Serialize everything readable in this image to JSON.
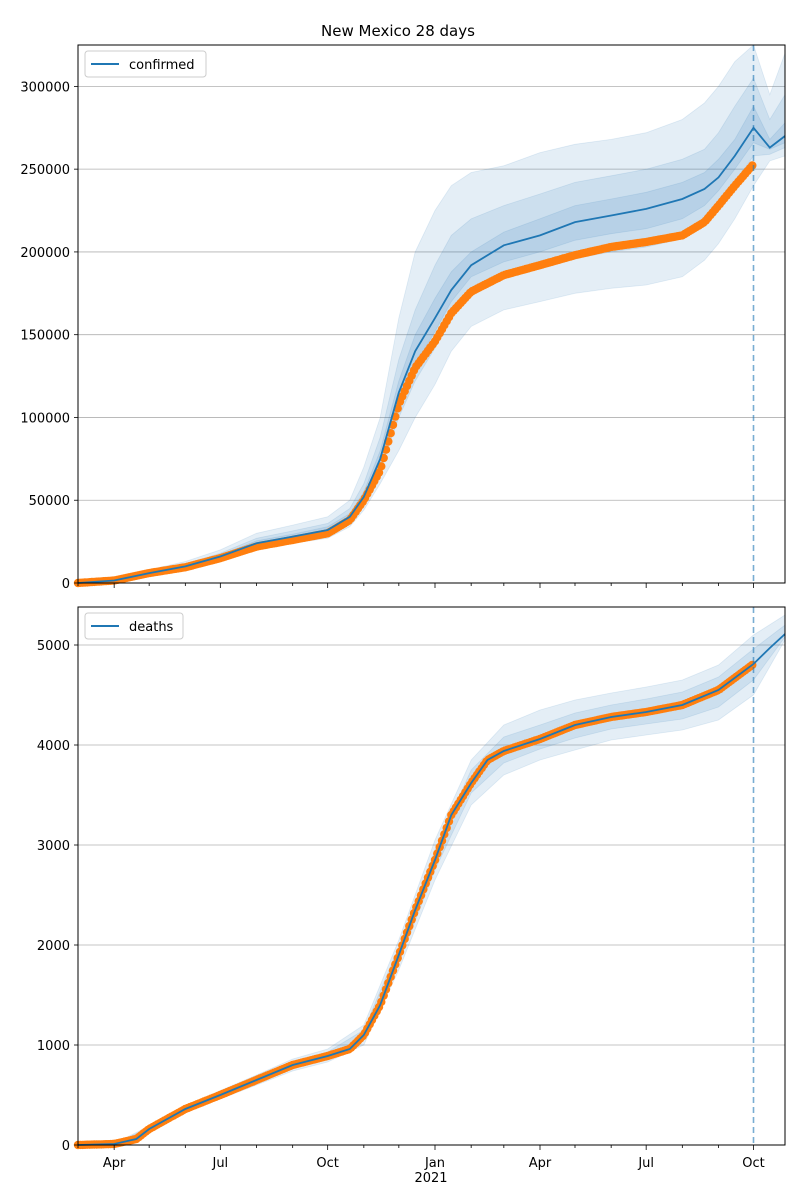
{
  "title": "New Mexico 28 days",
  "colors": {
    "model": "#1f77b4",
    "observed": "#ff7f0e",
    "band": "#1f77b4",
    "grid": "#b0b0b0",
    "vline": "#1f77b4"
  },
  "x_axis": {
    "ticks": [
      {
        "label": "Apr",
        "date": "2020-04-01"
      },
      {
        "label": "Jul",
        "date": "2020-07-01"
      },
      {
        "label": "Oct",
        "date": "2020-10-01"
      },
      {
        "label": "Jan",
        "date": "2021-01-01"
      },
      {
        "label": "Apr",
        "date": "2021-04-01"
      },
      {
        "label": "Jul",
        "date": "2021-07-01"
      },
      {
        "label": "Oct",
        "date": "2021-10-01"
      }
    ],
    "year_label": "2021",
    "range": [
      "2020-03-01",
      "2021-10-28"
    ],
    "forecast_start": "2021-10-01"
  },
  "chart_data": [
    {
      "type": "line",
      "panel": "top",
      "title": "New Mexico 28 days",
      "ylim": [
        0,
        325000
      ],
      "yticks": [
        "0",
        "50000",
        "100000",
        "150000",
        "200000",
        "250000",
        "300000"
      ],
      "grid": "horizontal",
      "legend": {
        "position": "top-left",
        "label": "confirmed"
      },
      "series": [
        {
          "name": "confirmed",
          "kind": "model",
          "x": [
            "2020-03-01",
            "2020-04-01",
            "2020-05-01",
            "2020-06-01",
            "2020-07-01",
            "2020-08-01",
            "2020-09-01",
            "2020-10-01",
            "2020-10-20",
            "2020-11-01",
            "2020-11-15",
            "2020-12-01",
            "2020-12-15",
            "2021-01-01",
            "2021-01-15",
            "2021-02-01",
            "2021-03-01",
            "2021-04-01",
            "2021-05-01",
            "2021-06-01",
            "2021-07-01",
            "2021-08-01",
            "2021-08-20",
            "2021-09-01",
            "2021-09-15",
            "2021-10-01",
            "2021-10-15",
            "2021-10-28"
          ],
          "y": [
            0,
            1500,
            6000,
            10000,
            16000,
            24000,
            28000,
            32000,
            40000,
            52000,
            75000,
            115000,
            140000,
            160000,
            177000,
            192000,
            204000,
            210000,
            218000,
            222000,
            226000,
            232000,
            238000,
            245000,
            258000,
            275000,
            263000,
            270000
          ]
        },
        {
          "name": "confirmed observed",
          "kind": "observed",
          "x": [
            "2020-03-01",
            "2020-04-01",
            "2020-05-01",
            "2020-06-01",
            "2020-07-01",
            "2020-08-01",
            "2020-09-01",
            "2020-10-01",
            "2020-10-20",
            "2020-11-01",
            "2020-11-15",
            "2020-12-01",
            "2020-12-15",
            "2021-01-01",
            "2021-01-15",
            "2021-02-01",
            "2021-03-01",
            "2021-04-01",
            "2021-05-01",
            "2021-06-01",
            "2021-07-01",
            "2021-08-01",
            "2021-08-20",
            "2021-09-01",
            "2021-09-15",
            "2021-10-01"
          ],
          "y": [
            0,
            1500,
            6000,
            9500,
            15000,
            22000,
            26000,
            30000,
            38000,
            50000,
            68000,
            108000,
            130000,
            146000,
            163000,
            176000,
            186000,
            192000,
            198000,
            203000,
            206000,
            210000,
            218000,
            228000,
            240000,
            253000
          ]
        }
      ],
      "bands": [
        {
          "date": [
            "2020-03-01",
            "2020-04-01",
            "2020-05-01",
            "2020-06-01",
            "2020-07-01",
            "2020-08-01",
            "2020-09-01",
            "2020-10-01",
            "2020-10-20",
            "2020-11-01",
            "2020-11-15",
            "2020-12-01",
            "2020-12-15",
            "2021-01-01",
            "2021-01-15",
            "2021-02-01",
            "2021-03-01",
            "2021-04-01",
            "2021-05-01",
            "2021-06-01",
            "2021-07-01",
            "2021-08-01",
            "2021-08-20",
            "2021-09-01",
            "2021-09-15",
            "2021-10-01",
            "2021-10-15",
            "2021-10-28"
          ],
          "lower": [
            0,
            1000,
            4500,
            8000,
            13000,
            20000,
            24000,
            27000,
            34000,
            44000,
            60000,
            80000,
            100000,
            120000,
            140000,
            155000,
            165000,
            170000,
            175000,
            178000,
            180000,
            185000,
            195000,
            205000,
            220000,
            240000,
            255000,
            258000
          ],
          "upper": [
            0,
            2500,
            8000,
            13000,
            20000,
            30000,
            35000,
            40000,
            50000,
            70000,
            100000,
            160000,
            200000,
            225000,
            240000,
            248000,
            252000,
            260000,
            265000,
            268000,
            272000,
            280000,
            290000,
            300000,
            315000,
            325000,
            295000,
            320000
          ]
        },
        {
          "date": [
            "2020-03-01",
            "2020-04-01",
            "2020-05-01",
            "2020-06-01",
            "2020-07-01",
            "2020-08-01",
            "2020-09-01",
            "2020-10-01",
            "2020-10-20",
            "2020-11-01",
            "2020-11-15",
            "2020-12-01",
            "2020-12-15",
            "2021-01-01",
            "2021-01-15",
            "2021-02-01",
            "2021-03-01",
            "2021-04-01",
            "2021-05-01",
            "2021-06-01",
            "2021-07-01",
            "2021-08-01",
            "2021-08-20",
            "2021-09-01",
            "2021-09-15",
            "2021-10-01",
            "2021-10-15",
            "2021-10-28"
          ],
          "lower": [
            0,
            1200,
            5000,
            9000,
            14500,
            22000,
            26000,
            29500,
            37000,
            48000,
            68000,
            100000,
            122000,
            142000,
            160000,
            175000,
            185000,
            190000,
            196000,
            200000,
            203000,
            208000,
            217000,
            228000,
            242000,
            258000,
            259000,
            263000
          ],
          "upper": [
            0,
            2000,
            7000,
            11500,
            18000,
            27000,
            31500,
            36000,
            45000,
            60000,
            88000,
            135000,
            165000,
            192000,
            210000,
            220000,
            228000,
            235000,
            242000,
            246000,
            250000,
            256000,
            262000,
            272000,
            288000,
            305000,
            280000,
            295000
          ]
        },
        {
          "date": [
            "2020-03-01",
            "2020-04-01",
            "2020-05-01",
            "2020-06-01",
            "2020-07-01",
            "2020-08-01",
            "2020-09-01",
            "2020-10-01",
            "2020-10-20",
            "2020-11-01",
            "2020-11-15",
            "2020-12-01",
            "2020-12-15",
            "2021-01-01",
            "2021-01-15",
            "2021-02-01",
            "2021-03-01",
            "2021-04-01",
            "2021-05-01",
            "2021-06-01",
            "2021-07-01",
            "2021-08-01",
            "2021-08-20",
            "2021-09-01",
            "2021-09-15",
            "2021-10-01",
            "2021-10-15",
            "2021-10-28"
          ],
          "lower": [
            0,
            1400,
            5500,
            9600,
            15500,
            23000,
            27000,
            30500,
            39000,
            50000,
            72000,
            110000,
            132000,
            152000,
            170000,
            185000,
            194000,
            200000,
            207000,
            211000,
            214000,
            220000,
            228000,
            237000,
            250000,
            266000,
            262000,
            266000
          ],
          "upper": [
            0,
            1700,
            6500,
            10500,
            17000,
            25500,
            29500,
            34000,
            42000,
            55000,
            80000,
            122000,
            150000,
            172000,
            188000,
            200000,
            212000,
            220000,
            228000,
            232000,
            236000,
            242000,
            248000,
            256000,
            268000,
            288000,
            268000,
            278000
          ]
        }
      ]
    },
    {
      "type": "line",
      "panel": "bottom",
      "ylim": [
        0,
        5380
      ],
      "yticks": [
        "0",
        "1000",
        "2000",
        "3000",
        "4000",
        "5000"
      ],
      "grid": "horizontal",
      "legend": {
        "position": "top-left",
        "label": "deaths"
      },
      "series": [
        {
          "name": "deaths",
          "kind": "model",
          "x": [
            "2020-03-01",
            "2020-04-01",
            "2020-04-20",
            "2020-05-01",
            "2020-06-01",
            "2020-07-01",
            "2020-08-01",
            "2020-09-01",
            "2020-10-01",
            "2020-10-20",
            "2020-11-01",
            "2020-11-15",
            "2020-12-01",
            "2020-12-15",
            "2021-01-01",
            "2021-01-15",
            "2021-02-01",
            "2021-02-15",
            "2021-03-01",
            "2021-04-01",
            "2021-05-01",
            "2021-06-01",
            "2021-07-01",
            "2021-08-01",
            "2021-09-01",
            "2021-10-01",
            "2021-10-15",
            "2021-10-28"
          ],
          "y": [
            0,
            10,
            60,
            160,
            360,
            500,
            650,
            800,
            890,
            960,
            1100,
            1400,
            1900,
            2350,
            2850,
            3300,
            3620,
            3850,
            3940,
            4060,
            4200,
            4280,
            4330,
            4400,
            4550,
            4810,
            4970,
            5110
          ]
        },
        {
          "name": "deaths observed",
          "kind": "observed",
          "x": [
            "2020-03-01",
            "2020-04-01",
            "2020-04-20",
            "2020-05-01",
            "2020-06-01",
            "2020-07-01",
            "2020-08-01",
            "2020-09-01",
            "2020-10-01",
            "2020-10-20",
            "2020-11-01",
            "2020-11-15",
            "2020-12-01",
            "2020-12-15",
            "2021-01-01",
            "2021-01-15",
            "2021-02-01",
            "2021-02-15",
            "2021-03-01",
            "2021-04-01",
            "2021-05-01",
            "2021-06-01",
            "2021-07-01",
            "2021-08-01",
            "2021-09-01",
            "2021-10-01"
          ],
          "y": [
            0,
            10,
            60,
            160,
            360,
            500,
            650,
            800,
            890,
            960,
            1100,
            1400,
            1900,
            2350,
            2850,
            3300,
            3620,
            3850,
            3940,
            4060,
            4200,
            4280,
            4330,
            4400,
            4550,
            4810
          ]
        }
      ],
      "bands": [
        {
          "date": [
            "2020-03-01",
            "2020-04-01",
            "2020-05-01",
            "2020-06-01",
            "2020-07-01",
            "2020-08-01",
            "2020-09-01",
            "2020-10-01",
            "2020-11-01",
            "2020-12-01",
            "2021-01-01",
            "2021-02-01",
            "2021-03-01",
            "2021-04-01",
            "2021-05-01",
            "2021-06-01",
            "2021-07-01",
            "2021-08-01",
            "2021-09-01",
            "2021-10-01",
            "2021-10-28"
          ],
          "lower": [
            0,
            5,
            140,
            330,
            460,
            600,
            740,
            830,
            1000,
            1750,
            2650,
            3400,
            3700,
            3850,
            3950,
            4050,
            4100,
            4150,
            4250,
            4500,
            5050
          ],
          "upper": [
            0,
            15,
            190,
            390,
            545,
            700,
            860,
            960,
            1200,
            2050,
            3050,
            3850,
            4200,
            4350,
            4450,
            4520,
            4580,
            4650,
            4800,
            5100,
            5300
          ]
        },
        {
          "date": [
            "2020-03-01",
            "2020-04-01",
            "2020-05-01",
            "2020-06-01",
            "2020-07-01",
            "2020-08-01",
            "2020-09-01",
            "2020-10-01",
            "2020-11-01",
            "2020-12-01",
            "2021-01-01",
            "2021-02-01",
            "2021-03-01",
            "2021-04-01",
            "2021-05-01",
            "2021-06-01",
            "2021-07-01",
            "2021-08-01",
            "2021-09-01",
            "2021-10-01",
            "2021-10-28"
          ],
          "lower": [
            0,
            8,
            150,
            345,
            480,
            625,
            770,
            860,
            1050,
            1820,
            2750,
            3520,
            3820,
            3960,
            4070,
            4160,
            4210,
            4260,
            4380,
            4650,
            5080
          ],
          "upper": [
            0,
            12,
            175,
            375,
            525,
            680,
            830,
            930,
            1150,
            1980,
            2950,
            3750,
            4080,
            4200,
            4320,
            4400,
            4460,
            4530,
            4680,
            4960,
            5200
          ]
        }
      ]
    }
  ]
}
